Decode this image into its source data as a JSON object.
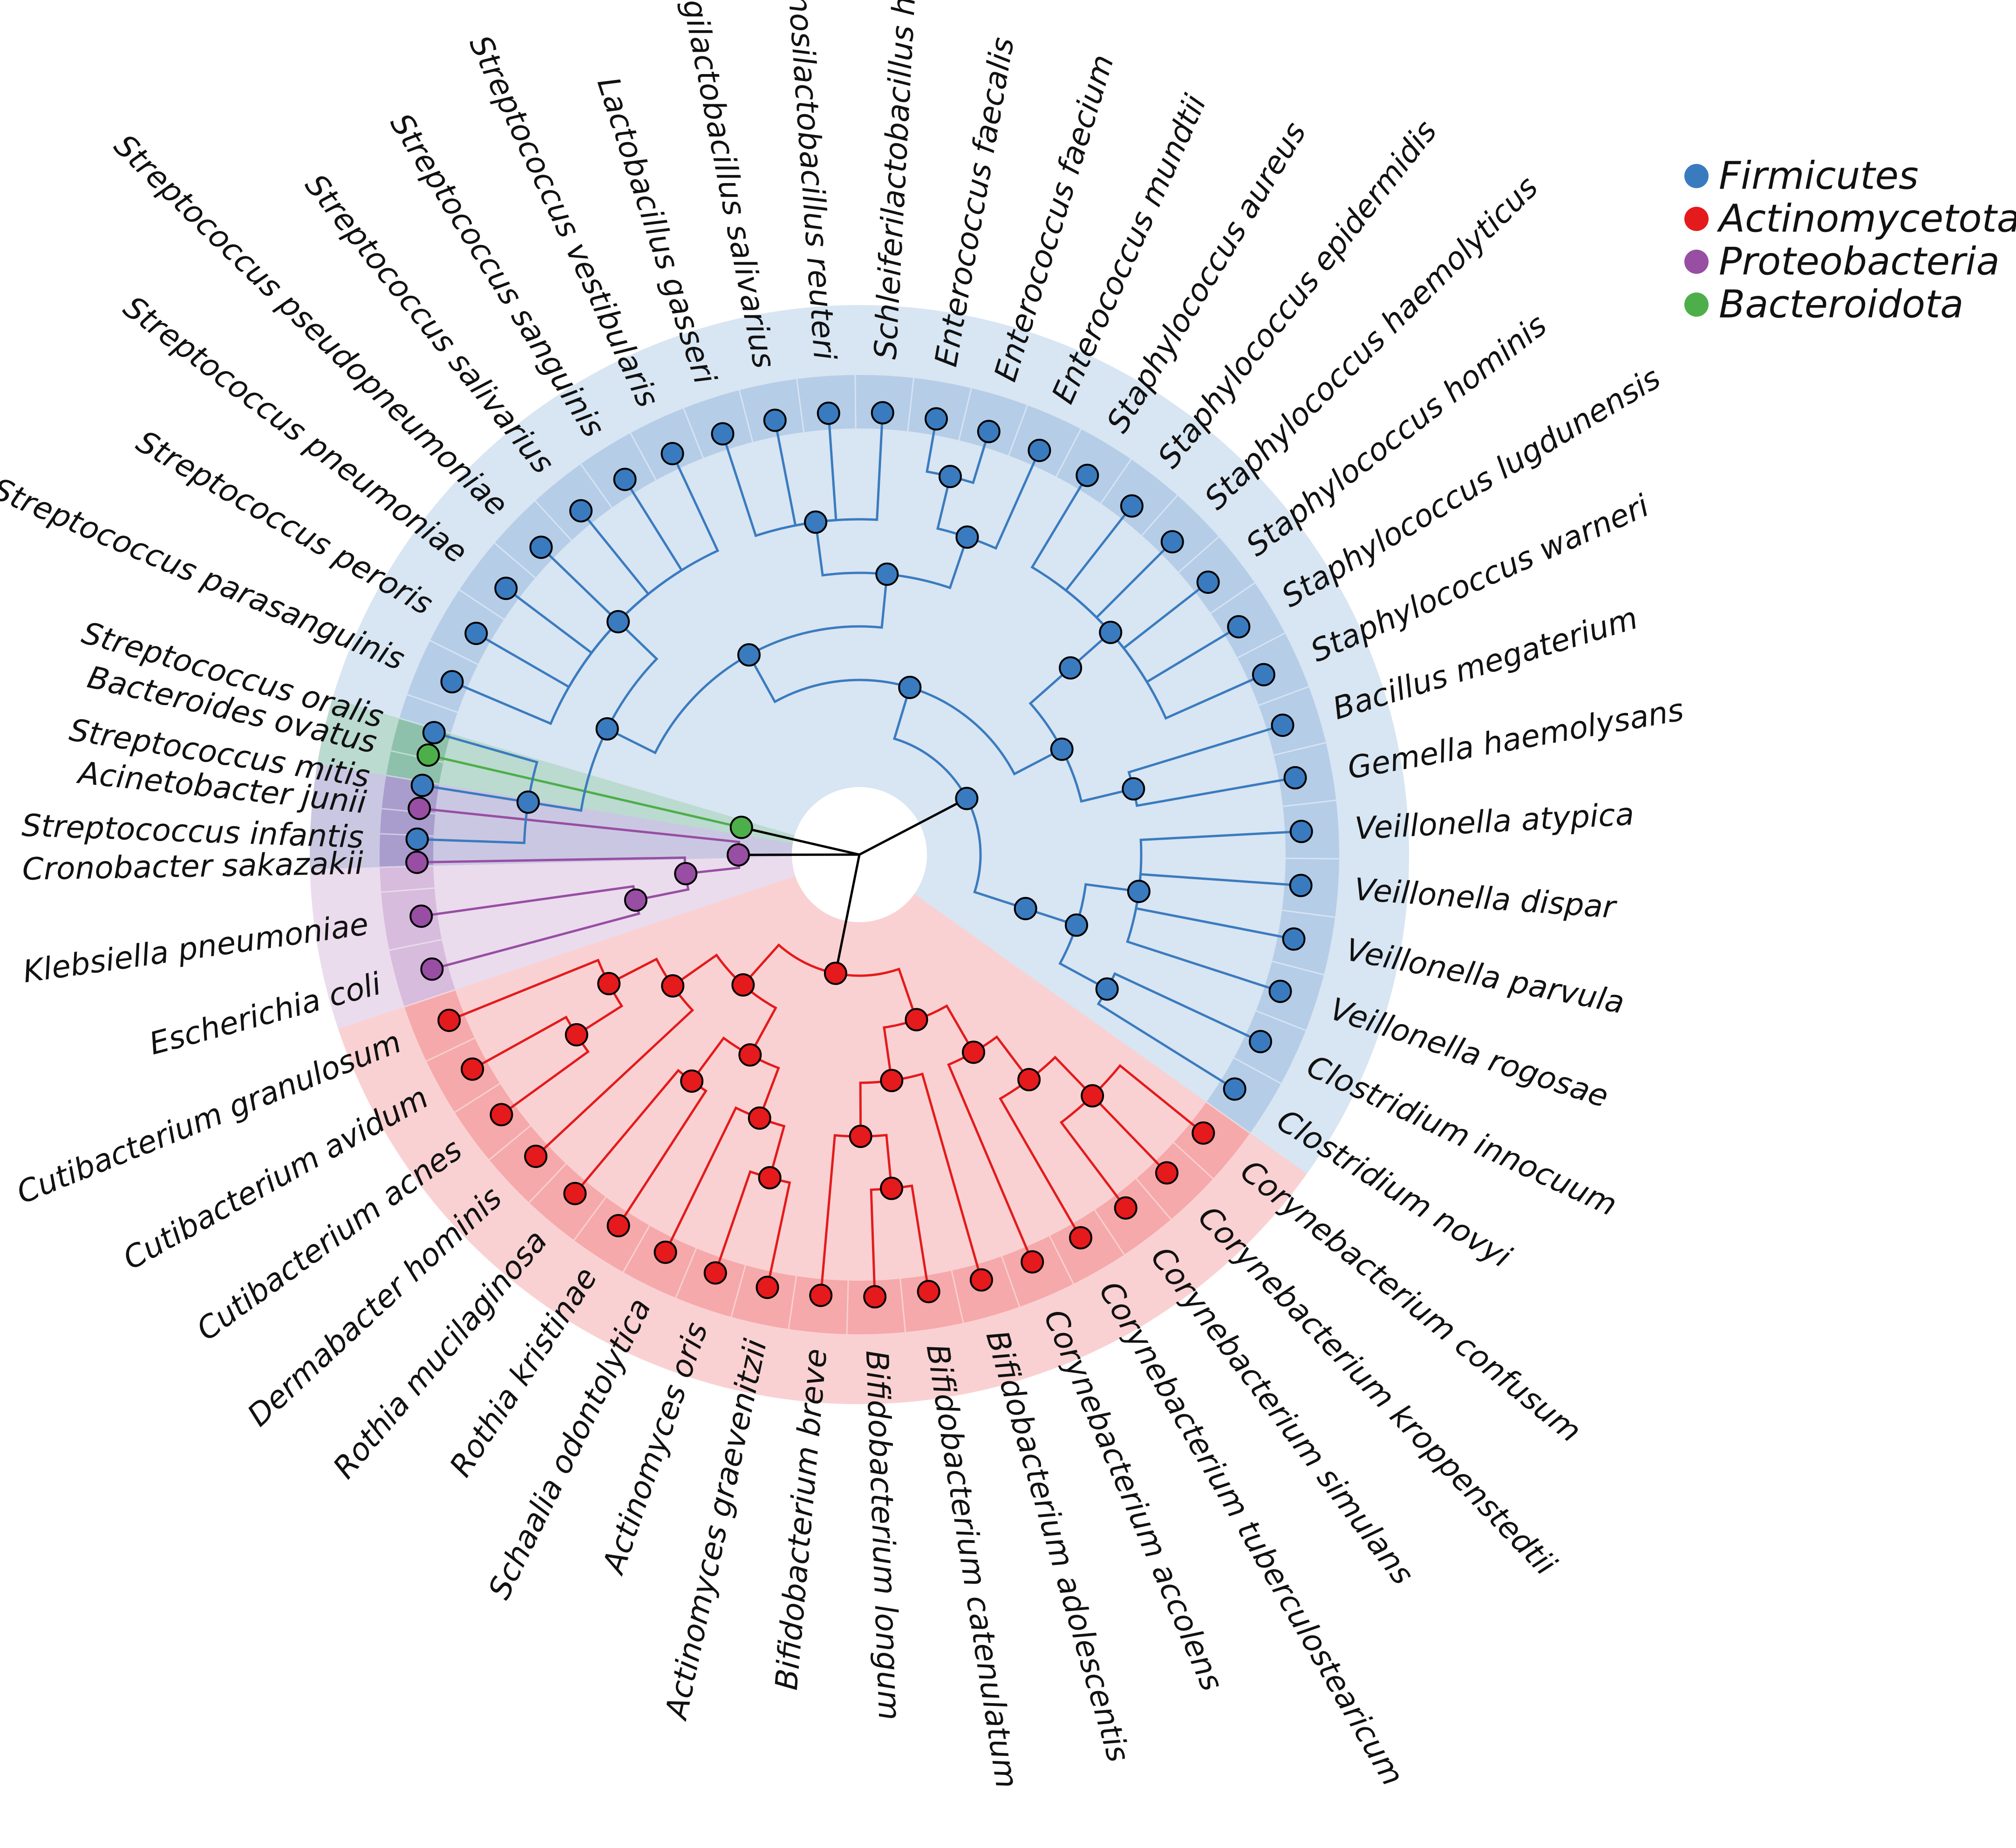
{
  "colors": {
    "Firmicutes": "#3a7bbf",
    "Actinomycetota": "#e41a1c",
    "Proteobacteria": "#984ea3",
    "Bacteroidota": "#4daf4a",
    "root_branch": "#000000"
  },
  "legend": [
    {
      "label": "Firmicutes",
      "color_key": "Firmicutes"
    },
    {
      "label": "Actinomycetota",
      "color_key": "Actinomycetota"
    },
    {
      "label": "Proteobacteria",
      "color_key": "Proteobacteria"
    },
    {
      "label": "Bacteroidota",
      "color_key": "Bacteroidota"
    }
  ],
  "taxa": [
    {
      "name": "Streptococcus infantis",
      "phylum": "Firmicutes"
    },
    {
      "name": "Streptococcus mitis",
      "phylum": "Firmicutes"
    },
    {
      "name": "Streptococcus oralis",
      "phylum": "Firmicutes"
    },
    {
      "name": "Streptococcus parasanguinis",
      "phylum": "Firmicutes"
    },
    {
      "name": "Streptococcus peroris",
      "phylum": "Firmicutes"
    },
    {
      "name": "Streptococcus pneumoniae",
      "phylum": "Firmicutes"
    },
    {
      "name": "Streptococcus pseudopneumoniae",
      "phylum": "Firmicutes"
    },
    {
      "name": "Streptococcus salivarius",
      "phylum": "Firmicutes"
    },
    {
      "name": "Streptococcus sanguinis",
      "phylum": "Firmicutes"
    },
    {
      "name": "Streptococcus vestibularis",
      "phylum": "Firmicutes"
    },
    {
      "name": "Lactobacillus gasseri",
      "phylum": "Firmicutes"
    },
    {
      "name": "Ligilactobacillus salivarius",
      "phylum": "Firmicutes"
    },
    {
      "name": "Limosilactobacillus reuteri",
      "phylum": "Firmicutes"
    },
    {
      "name": "Schleiferilactobacillus harbinensis",
      "phylum": "Firmicutes"
    },
    {
      "name": "Enterococcus faecalis",
      "phylum": "Firmicutes"
    },
    {
      "name": "Enterococcus faecium",
      "phylum": "Firmicutes"
    },
    {
      "name": "Enterococcus mundtii",
      "phylum": "Firmicutes"
    },
    {
      "name": "Staphylococcus aureus",
      "phylum": "Firmicutes"
    },
    {
      "name": "Staphylococcus epidermidis",
      "phylum": "Firmicutes"
    },
    {
      "name": "Staphylococcus haemolyticus",
      "phylum": "Firmicutes"
    },
    {
      "name": "Staphylococcus hominis",
      "phylum": "Firmicutes"
    },
    {
      "name": "Staphylococcus lugdunensis",
      "phylum": "Firmicutes"
    },
    {
      "name": "Staphylococcus warneri",
      "phylum": "Firmicutes"
    },
    {
      "name": "Bacillus megaterium",
      "phylum": "Firmicutes"
    },
    {
      "name": "Gemella haemolysans",
      "phylum": "Firmicutes"
    },
    {
      "name": "Veillonella atypica",
      "phylum": "Firmicutes"
    },
    {
      "name": "Veillonella dispar",
      "phylum": "Firmicutes"
    },
    {
      "name": "Veillonella parvula",
      "phylum": "Firmicutes"
    },
    {
      "name": "Veillonella rogosae",
      "phylum": "Firmicutes"
    },
    {
      "name": "Clostridium innocuum",
      "phylum": "Firmicutes"
    },
    {
      "name": "Clostridium novyi",
      "phylum": "Firmicutes"
    },
    {
      "name": "Corynebacterium confusum",
      "phylum": "Actinomycetota"
    },
    {
      "name": "Corynebacterium kroppenstedtii",
      "phylum": "Actinomycetota"
    },
    {
      "name": "Corynebacterium simulans",
      "phylum": "Actinomycetota"
    },
    {
      "name": "Corynebacterium tuberculostearicum",
      "phylum": "Actinomycetota"
    },
    {
      "name": "Corynebacterium accolens",
      "phylum": "Actinomycetota"
    },
    {
      "name": "Bifidobacterium adolescentis",
      "phylum": "Actinomycetota"
    },
    {
      "name": "Bifidobacterium catenulatum",
      "phylum": "Actinomycetota"
    },
    {
      "name": "Bifidobacterium longum",
      "phylum": "Actinomycetota"
    },
    {
      "name": "Bifidobacterium breve",
      "phylum": "Actinomycetota"
    },
    {
      "name": "Actinomyces graevenitzii",
      "phylum": "Actinomycetota"
    },
    {
      "name": "Actinomyces oris",
      "phylum": "Actinomycetota"
    },
    {
      "name": "Schaalia odontolytica",
      "phylum": "Actinomycetota"
    },
    {
      "name": "Rothia kristinae",
      "phylum": "Actinomycetota"
    },
    {
      "name": "Rothia mucilaginosa",
      "phylum": "Actinomycetota"
    },
    {
      "name": "Dermabacter hominis",
      "phylum": "Actinomycetota"
    },
    {
      "name": "Cutibacterium acnes",
      "phylum": "Actinomycetota"
    },
    {
      "name": "Cutibacterium avidum",
      "phylum": "Actinomycetota"
    },
    {
      "name": "Cutibacterium granulosum",
      "phylum": "Actinomycetota"
    },
    {
      "name": "Escherichia coli",
      "phylum": "Proteobacteria"
    },
    {
      "name": "Klebsiella pneumoniae",
      "phylum": "Proteobacteria"
    },
    {
      "name": "Cronobacter sakazakii",
      "phylum": "Proteobacteria"
    },
    {
      "name": "Acinetobacter junii",
      "phylum": "Proteobacteria"
    },
    {
      "name": "Bacteroides ovatus",
      "phylum": "Bacteroidota"
    }
  ],
  "tree": {
    "children": [
      {
        "phylum": "Bacteroidota",
        "children": [
          {
            "taxon": 53
          }
        ]
      },
      {
        "phylum": "Proteobacteria",
        "children": [
          {
            "taxon": 52
          },
          {
            "children": [
              {
                "taxon": 51
              },
              {
                "children": [
                  {
                    "taxon": 49
                  },
                  {
                    "taxon": 50
                  }
                ]
              }
            ]
          }
        ]
      },
      {
        "phylum": "Actinomycetota",
        "children": [
          {
            "children": [
              {
                "children": [
                  {
                    "children": [
                      {
                        "taxon": 48
                      },
                      {
                        "children": [
                          {
                            "taxon": 46
                          },
                          {
                            "taxon": 47
                          }
                        ]
                      }
                    ]
                  },
                  {
                    "taxon": 45
                  }
                ]
              },
              {
                "children": [
                  {
                    "children": [
                      {
                        "taxon": 43
                      },
                      {
                        "taxon": 44
                      }
                    ]
                  },
                  {
                    "children": [
                      {
                        "taxon": 42
                      },
                      {
                        "children": [
                          {
                            "taxon": 40
                          },
                          {
                            "taxon": 41
                          }
                        ]
                      }
                    ]
                  }
                ]
              }
            ]
          },
          {
            "children": [
              {
                "children": [
                  {
                    "children": [
                      {
                        "taxon": 39
                      },
                      {
                        "children": [
                          {
                            "taxon": 37
                          },
                          {
                            "taxon": 38
                          }
                        ]
                      }
                    ]
                  },
                  {
                    "taxon": 36
                  }
                ]
              },
              {
                "children": [
                  {
                    "taxon": 35
                  },
                  {
                    "children": [
                      {
                        "taxon": 34
                      },
                      {
                        "children": [
                          {
                            "taxon": 31
                          },
                          {
                            "taxon": 32
                          },
                          {
                            "taxon": 33
                          }
                        ]
                      }
                    ]
                  }
                ]
              }
            ]
          }
        ]
      },
      {
        "phylum": "Firmicutes",
        "children": [
          {
            "children": [
              {
                "children": [
                  {
                    "children": [
                      {
                        "taxon": 29
                      },
                      {
                        "taxon": 30
                      }
                    ]
                  },
                  {
                    "children": [
                      {
                        "taxon": 25
                      },
                      {
                        "taxon": 26
                      },
                      {
                        "taxon": 27
                      },
                      {
                        "taxon": 28
                      }
                    ]
                  }
                ]
              }
            ]
          },
          {
            "children": [
              {
                "children": [
                  {
                    "children": [
                      {
                        "children": [
                          {
                            "taxon": 0
                          },
                          {
                            "taxon": 1
                          },
                          {
                            "taxon": 2
                          }
                        ]
                      },
                      {
                        "children": [
                          {
                            "taxon": 3
                          },
                          {
                            "taxon": 4
                          },
                          {
                            "taxon": 5
                          },
                          {
                            "taxon": 6
                          },
                          {
                            "taxon": 7
                          },
                          {
                            "taxon": 8
                          },
                          {
                            "taxon": 9
                          }
                        ]
                      }
                    ]
                  },
                  {
                    "children": [
                      {
                        "children": [
                          {
                            "taxon": 10
                          },
                          {
                            "taxon": 11
                          },
                          {
                            "taxon": 12
                          },
                          {
                            "taxon": 13
                          }
                        ]
                      },
                      {
                        "children": [
                          {
                            "children": [
                              {
                                "taxon": 14
                              },
                              {
                                "taxon": 15
                              }
                            ]
                          },
                          {
                            "taxon": 16
                          }
                        ]
                      }
                    ]
                  }
                ]
              },
              {
                "children": [
                  {
                    "children": [
                      {
                        "taxon": 23
                      },
                      {
                        "taxon": 24
                      }
                    ]
                  },
                  {
                    "children": [
                      {
                        "children": [
                          {
                            "taxon": 17
                          },
                          {
                            "taxon": 18
                          },
                          {
                            "taxon": 19
                          },
                          {
                            "taxon": 20
                          },
                          {
                            "taxon": 21
                          },
                          {
                            "taxon": 22
                          }
                        ]
                      }
                    ]
                  }
                ]
              }
            ]
          }
        ]
      }
    ]
  }
}
